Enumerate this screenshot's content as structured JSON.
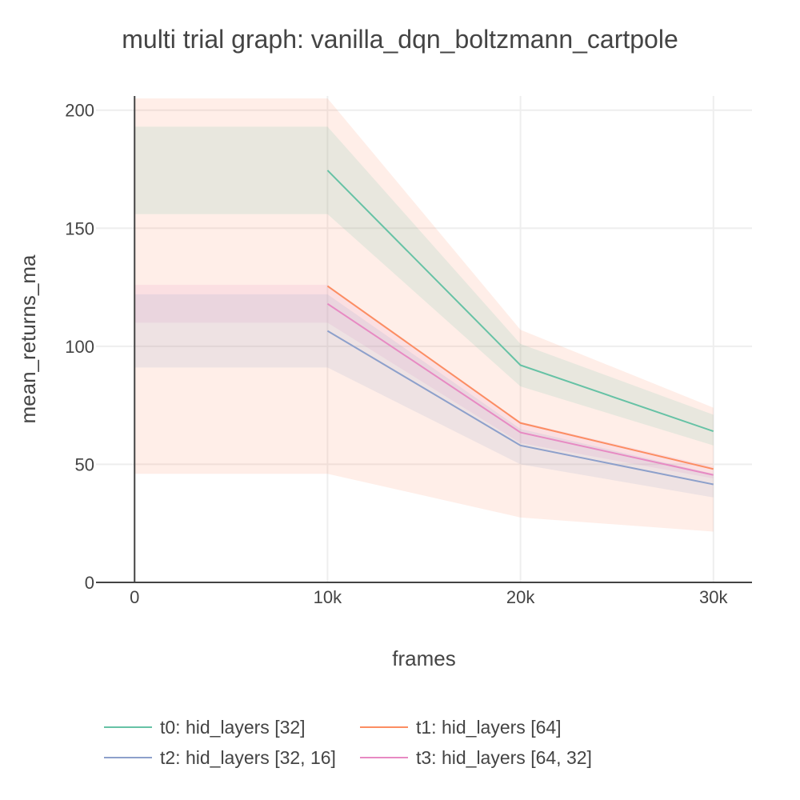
{
  "chart_data": {
    "type": "line",
    "title": "multi trial graph: vanilla_dqn_boltzmann_cartpole",
    "xlabel": "frames",
    "ylabel": "mean_returns_ma",
    "xlim": [
      -2000,
      32000
    ],
    "ylim": [
      0,
      206
    ],
    "x_ticks": [
      {
        "value": 0,
        "label": "0"
      },
      {
        "value": 10000,
        "label": "10k"
      },
      {
        "value": 20000,
        "label": "20k"
      },
      {
        "value": 30000,
        "label": "30k"
      }
    ],
    "y_ticks": [
      {
        "value": 0,
        "label": "0"
      },
      {
        "value": 50,
        "label": "50"
      },
      {
        "value": 100,
        "label": "100"
      },
      {
        "value": 150,
        "label": "150"
      },
      {
        "value": 200,
        "label": "200"
      }
    ],
    "grid": true,
    "legend_position": "bottom",
    "bands": [
      {
        "color": "#fc8d62",
        "opacity": 0.15,
        "x": [
          0,
          10000,
          20000,
          30000
        ],
        "upper": [
          205,
          205,
          107,
          74
        ],
        "lower": [
          46,
          46,
          27.5,
          21.5
        ]
      },
      {
        "color": "#66c2a5",
        "opacity": 0.15,
        "x": [
          0,
          10000,
          20000,
          30000
        ],
        "upper": [
          193,
          193,
          101,
          71
        ],
        "lower": [
          156,
          156,
          83,
          58
        ]
      },
      {
        "color": "#e78ac3",
        "opacity": 0.15,
        "x": [
          0,
          10000,
          20000,
          30000
        ],
        "upper": [
          126,
          126,
          68,
          49
        ],
        "lower": [
          110,
          110,
          59,
          44
        ]
      },
      {
        "color": "#8da0cb",
        "opacity": 0.15,
        "x": [
          0,
          10000,
          20000,
          30000
        ],
        "upper": [
          122,
          122,
          65,
          46
        ],
        "lower": [
          91,
          91,
          50,
          36
        ]
      }
    ],
    "x": [
      10000,
      20000,
      30000
    ],
    "series": [
      {
        "name": "t0: hid_layers [32]",
        "color": "#66c2a5",
        "values": [
          174.5,
          92,
          64
        ]
      },
      {
        "name": "t1: hid_layers [64]",
        "color": "#fc8d62",
        "values": [
          125.5,
          67.5,
          48
        ]
      },
      {
        "name": "t2: hid_layers [32, 16]",
        "color": "#8da0cb",
        "values": [
          106.5,
          58,
          41.5
        ]
      },
      {
        "name": "t3: hid_layers [64, 32]",
        "color": "#e78ac3",
        "values": [
          118,
          63.5,
          45.5
        ]
      }
    ]
  }
}
